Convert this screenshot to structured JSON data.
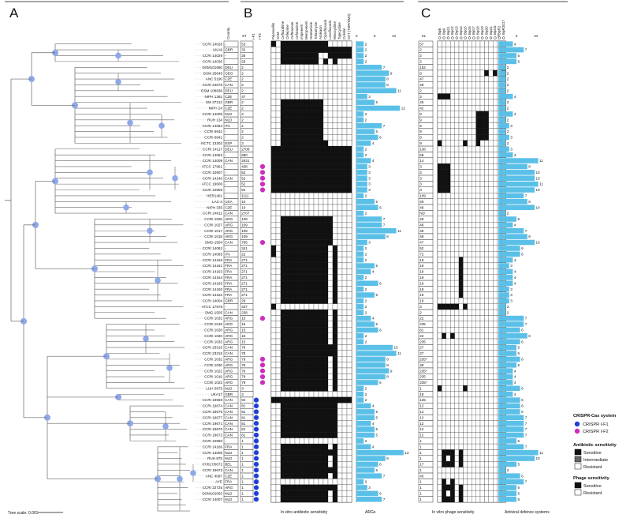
{
  "panels": {
    "a": "A",
    "b": "B",
    "c": "C"
  },
  "headers": {
    "st": "ST",
    "country": "Country",
    "if1": "I-F1",
    "if2": "I-F2",
    "kl": "KL"
  },
  "antibiotics": [
    "Piperacillin",
    "SAM",
    "Ceftazidime",
    "Cefepime",
    "Ceftriaxone",
    "Cefotaxime",
    "Imipenem",
    "Meropenem",
    "Gentamicin",
    "Tobramycin",
    "Amikacin",
    "Ciprofloxacin",
    "Levofloxacin",
    "Minocycline",
    "Tigecycline",
    "Colistin",
    "SXT (TMP/SMX)"
  ],
  "phages": [
    "Bφ8",
    "Bφ9",
    "Bφ11",
    "Bφ12",
    "Bφ13",
    "Bφ14",
    "Bφ15",
    "Bφ16",
    "Bφ17",
    "Bφ18",
    "Bφ19",
    "Bφ20",
    "Bφ21",
    "BφC5",
    "BφR2",
    "BφR2017"
  ],
  "args_axis": [
    "0",
    "5",
    "10"
  ],
  "defence_axis": [
    "0",
    "5",
    "10"
  ],
  "captions": {
    "antibiotic": "In vitro antibiotic sensitivity",
    "args": "ARGs",
    "phage": "In vitro phage sensitivity",
    "defence": "Antiviral defence systems"
  },
  "scale": "Tree scale: 0.001",
  "legend": {
    "crispr_title": "CRISPR-Cas system",
    "crispr_items": [
      {
        "label": "CRISPR I-F1",
        "color": "#1f3fd6"
      },
      {
        "label": "CRISPR I-F2",
        "color": "#cc2dbd"
      }
    ],
    "ab_title": "Antibiotic sensitivity",
    "ab_items": [
      {
        "label": "Sensitive",
        "color": "#111111"
      },
      {
        "label": "Intermediate",
        "color": "#666666"
      },
      {
        "label": "Resistant",
        "color": "#ffffff"
      }
    ],
    "ph_title": "Phage sensitivity",
    "ph_items": [
      {
        "label": "Sensitive",
        "color": "#111111"
      },
      {
        "label": "Resistant",
        "color": "#ffffff"
      }
    ]
  },
  "colors": {
    "bar": "#5bc0e8",
    "node": "#8fa8e8",
    "if1": "#1f3fd6",
    "if2": "#cc2dbd"
  },
  "strains": [
    {
      "name": "CCRI 14028",
      "country": "-",
      "st": "53",
      "if1": 0,
      "if2": 0,
      "ab": "20222222222200000",
      "args": 2,
      "ph": "0000000000000000",
      "kl": "57",
      "def": 4
    },
    {
      "name": "UKA9",
      "country": "GBR",
      "st": "32",
      "if1": 0,
      "if2": 0,
      "ab": "00222222222222222",
      "args": 2,
      "ph": "0000000000000000",
      "kl": "2",
      "def": 7
    },
    {
      "name": "CCRI 14029",
      "country": "-",
      "st": "28",
      "if1": 0,
      "if2": 0,
      "ab": "00222222220022222",
      "args": 2,
      "ph": "0000000000000000",
      "kl": "2",
      "def": 5
    },
    {
      "name": "CCRI 14030",
      "country": "-",
      "st": "26",
      "if1": 0,
      "if2": 0,
      "ab": "00222222220202000",
      "args": 2,
      "ph": "0000000000000000",
      "kl": "2",
      "def": 5
    },
    {
      "name": "DSM101650",
      "country": "DEU",
      "st": "2",
      "if1": 0,
      "if2": 0,
      "ab": "00000000000000000",
      "args": 7,
      "ph": "0000000000000000",
      "kl": "152",
      "def": 2
    },
    {
      "name": "DSM 25645",
      "country": "GEO",
      "st": "2",
      "if1": 0,
      "if2": 0,
      "ab": "00000000000000000",
      "args": 9,
      "ph": "0000000000010101",
      "kl": "9",
      "def": 2
    },
    {
      "name": "ANC 5190",
      "country": "CZE",
      "st": "2",
      "if1": 0,
      "if2": 0,
      "ab": "00000000000000000",
      "args": 8,
      "ph": "0000000000000000",
      "kl": "47",
      "def": 2
    },
    {
      "name": "CCRI 24076",
      "country": "CAN",
      "st": "2",
      "if1": 0,
      "if2": 0,
      "ab": "00000000000000000",
      "args": 8,
      "ph": "0000000000000000",
      "kl": "49",
      "def": 2
    },
    {
      "name": "DSM 108838",
      "country": "DEU",
      "st": "2",
      "if1": 0,
      "if2": 0,
      "ab": "00000000000000000",
      "args": 11,
      "ph": "0000000000000000",
      "kl": "2",
      "def": 2
    },
    {
      "name": "NIPH 1362",
      "country": "CZE",
      "st": "47",
      "if1": 0,
      "if2": 0,
      "ab": "00000000000000000",
      "args": 3,
      "ph": "1110000000000000",
      "kl": "3",
      "def": 4
    },
    {
      "name": "SM 37212",
      "country": "GBR",
      "st": "2",
      "if1": 0,
      "if2": 0,
      "ab": "00222222222000000",
      "args": 5,
      "ph": "0000000000000000",
      "kl": "45",
      "def": 2
    },
    {
      "name": "NIPH 24",
      "country": "CZE",
      "st": "2",
      "if1": 0,
      "if2": 0,
      "ab": "00222222222000000",
      "args": 12,
      "ph": "0000000000000000",
      "kl": "42",
      "def": 2
    },
    {
      "name": "CCRI 14005",
      "country": "NLD",
      "st": "2",
      "if1": 0,
      "if2": 0,
      "ab": "00222222222000000",
      "args": 2,
      "ph": "0000000001110000",
      "kl": "9",
      "def": 4
    },
    {
      "name": "RUH 134",
      "country": "NLD",
      "st": "2",
      "if1": 0,
      "if2": 0,
      "ab": "00222222222000000",
      "args": 2,
      "ph": "0000000001110000",
      "kl": "9",
      "def": 2
    },
    {
      "name": "CCRI 14064",
      "country": "ITA",
      "st": "2",
      "if1": 0,
      "if2": 0,
      "ab": "00222222222000000",
      "args": 7,
      "ph": "0000000001110000",
      "kl": "9",
      "def": 3
    },
    {
      "name": "CCRI 6642",
      "country": "-",
      "st": "2",
      "if1": 0,
      "if2": 0,
      "ab": "00222222222000000",
      "args": 5,
      "ph": "0000000001110000",
      "kl": "9",
      "def": 2
    },
    {
      "name": "CCRI 6841",
      "country": "-",
      "st": "2",
      "if1": 0,
      "if2": 0,
      "ab": "00222222222000000",
      "args": 6,
      "ph": "0000000001110000",
      "kl": "9",
      "def": 3
    },
    {
      "name": "NCTC 13302",
      "country": "ESP",
      "st": "3",
      "if1": 0,
      "if2": 0,
      "ab": "00222222222200000",
      "args": 4,
      "ph": "1000001001000000",
      "kl": "9",
      "def": 2
    },
    {
      "name": "CCRI 14117",
      "country": "DEU",
      "st": "2708",
      "if1": 0,
      "if2": 0,
      "ab": "22222222222222222",
      "args": 2,
      "ph": "0000000000000000",
      "kl": "138",
      "def": 3
    },
    {
      "name": "CCRI 14063",
      "country": "-",
      "st": "690",
      "if1": 0,
      "if2": 0,
      "ab": "22222222222222222",
      "args": 2,
      "ph": "0000000000000000",
      "kl": "58",
      "def": 4
    },
    {
      "name": "CCRI 14009",
      "country": "CAN",
      "st": "2631",
      "if1": 0,
      "if2": 0,
      "ab": "22222222222222222",
      "args": 4,
      "ph": "0000000000000000",
      "kl": "14",
      "def": 11
    },
    {
      "name": "ATCC 17961",
      "country": "-",
      "st": "438",
      "if1": 0,
      "if2": 1,
      "ab": "22222222222222222",
      "args": 3,
      "ph": "1110000000000000",
      "kl": "3",
      "def": 8
    },
    {
      "name": "CCRI 10907",
      "country": "-",
      "st": "52",
      "if1": 0,
      "if2": 1,
      "ab": "22222222222222222",
      "args": 3,
      "ph": "1110000000000000",
      "kl": "3",
      "def": 10
    },
    {
      "name": "CCRI 14140",
      "country": "CAN",
      "st": "52",
      "if1": 0,
      "if2": 1,
      "ab": "22222222222222222",
      "args": 3,
      "ph": "1110000000000000",
      "kl": "3",
      "def": 10
    },
    {
      "name": "ATCC 19606",
      "country": "-",
      "st": "52",
      "if1": 0,
      "if2": 1,
      "ab": "22222222222222222",
      "args": 3,
      "ph": "1110000000000000",
      "kl": "3",
      "def": 11
    },
    {
      "name": "CCRI 10906",
      "country": "-",
      "st": "52",
      "if1": 0,
      "if2": 1,
      "ab": "22222222222222222",
      "args": 3,
      "ph": "1110000000000000",
      "kl": "3",
      "def": 10
    },
    {
      "name": "HER1401",
      "country": "-",
      "st": "1111",
      "if1": 0,
      "if2": 0,
      "ab": "00000000000000000",
      "args": 2,
      "ph": "0000000000000000",
      "kl": "109",
      "def": 7
    },
    {
      "name": "LAC-4",
      "country": "USA",
      "st": "10",
      "if1": 0,
      "if2": 0,
      "ab": "00000000000000000",
      "args": 5,
      "ph": "0000000000000000",
      "kl": "49",
      "def": 8
    },
    {
      "name": "NIPH 335",
      "country": "CZE",
      "st": "10",
      "if1": 0,
      "if2": 0,
      "ab": "00000000000000000",
      "args": 6,
      "ph": "0000000000000000",
      "kl": "49",
      "def": 10
    },
    {
      "name": "CCRI 24611",
      "country": "CAN",
      "st": "2707",
      "if1": 0,
      "if2": 0,
      "ab": "00000000000000000",
      "args": 2,
      "ph": "0000000000000000",
      "kl": "ND",
      "def": 2
    },
    {
      "name": "CCRI 1026",
      "country": "ARG",
      "st": "109",
      "if1": 0,
      "if2": 0,
      "ab": "00222222222220000",
      "args": 7,
      "ph": "0000000000000000",
      "kl": "49",
      "def": 5
    },
    {
      "name": "CCRI 1027",
      "country": "ARG",
      "st": "109",
      "if1": 0,
      "if2": 0,
      "ab": "00222222222220000",
      "args": 7,
      "ph": "0000000000000000",
      "kl": "49",
      "def": 4
    },
    {
      "name": "CCRI 1017",
      "country": "ARG",
      "st": "109",
      "if1": 0,
      "if2": 0,
      "ab": "00222222222220000",
      "args": 11,
      "ph": "0000000000000000",
      "kl": "49",
      "def": 7
    },
    {
      "name": "CCRI 1018",
      "country": "ARG",
      "st": "109",
      "if1": 0,
      "if2": 0,
      "ab": "00222222222220000",
      "args": 8,
      "ph": "0000000000000000",
      "kl": "49",
      "def": 8
    },
    {
      "name": "SMG-1504",
      "country": "CAN",
      "st": "765",
      "if1": 0,
      "if2": 1,
      "ab": "00222222222220000",
      "args": 3,
      "ph": "0000000000000000",
      "kl": "47",
      "def": 10
    },
    {
      "name": "CCRI 14062",
      "country": "-",
      "st": "341",
      "if1": 0,
      "if2": 0,
      "ab": "20222222222202000",
      "args": 2,
      "ph": "0000000000000000",
      "kl": "52",
      "def": 6
    },
    {
      "name": "CCRI 14065",
      "country": "ITA",
      "st": "22",
      "if1": 0,
      "if2": 0,
      "ab": "20222222222202000",
      "args": 2,
      "ph": "0000000000000000",
      "kl": "72",
      "def": 6
    },
    {
      "name": "CCRI 14166",
      "country": "FRA",
      "st": "271",
      "if1": 0,
      "if2": 0,
      "ab": "00222222222202000",
      "args": 2,
      "ph": "0000010000000000",
      "kl": "19",
      "def": 4
    },
    {
      "name": "CCRI 14161",
      "country": "FRA",
      "st": "271",
      "if1": 0,
      "if2": 0,
      "ab": "00222222222202000",
      "args": 5,
      "ph": "0000010000000000",
      "kl": "19",
      "def": 3
    },
    {
      "name": "CCRI 14163",
      "country": "FRA",
      "st": "271",
      "if1": 0,
      "if2": 0,
      "ab": "00222222222202000",
      "args": 4,
      "ph": "0000010000000000",
      "kl": "19",
      "def": 4
    },
    {
      "name": "CCRI 14164",
      "country": "FRA",
      "st": "271",
      "if1": 0,
      "if2": 0,
      "ab": "00222222222202000",
      "args": 2,
      "ph": "0000010000000000",
      "kl": "19",
      "def": 4
    },
    {
      "name": "CCRI 14165",
      "country": "FRA",
      "st": "271",
      "if1": 0,
      "if2": 0,
      "ab": "00222222222202000",
      "args": 6,
      "ph": "0000010000000000",
      "kl": "19",
      "def": 4
    },
    {
      "name": "CCRI 14160",
      "country": "FRA",
      "st": "271",
      "if1": 0,
      "if2": 0,
      "ab": "00222222222202000",
      "args": 2,
      "ph": "0000010000000000",
      "kl": "19",
      "def": 3
    },
    {
      "name": "CCRI 14162",
      "country": "FRA",
      "st": "271",
      "if1": 0,
      "if2": 0,
      "ab": "00222222222202000",
      "args": 5,
      "ph": "0000010000000000",
      "kl": "19",
      "def": 3
    },
    {
      "name": "CCRI 14004",
      "country": "GBR",
      "st": "29",
      "if1": 0,
      "if2": 0,
      "ab": "00222222222202000",
      "args": 2,
      "ph": "0000000000000000",
      "kl": "19",
      "def": 3
    },
    {
      "name": "ATCC 17978",
      "country": "-",
      "st": "437",
      "if1": 0,
      "if2": 0,
      "ab": "20000000000000000",
      "args": 2,
      "ph": "1111101000000000",
      "kl": "3",
      "def": 2
    },
    {
      "name": "SMG-1505",
      "country": "CAN",
      "st": "238",
      "if1": 0,
      "if2": 0,
      "ab": "00222222222202000",
      "args": 2,
      "ph": "0000000000000000",
      "kl": "2",
      "def": 2
    },
    {
      "name": "CCRI 1031",
      "country": "ARG",
      "st": "15",
      "if1": 0,
      "if2": 1,
      "ab": "00222222222202000",
      "args": 4,
      "ph": "0000000000000000",
      "kl": "22",
      "def": 7
    },
    {
      "name": "CCRI 1019",
      "country": "ARG",
      "st": "15",
      "if1": 0,
      "if2": 0,
      "ab": "00222222222202000",
      "args": 5,
      "ph": "0000000000000000",
      "kl": "235",
      "def": 7
    },
    {
      "name": "CCRI 1028",
      "country": "ARG",
      "st": "15",
      "if1": 0,
      "if2": 0,
      "ab": "00222222222202000",
      "args": 6,
      "ph": "0000000000000000",
      "kl": "81",
      "def": 6
    },
    {
      "name": "CCRI 1020",
      "country": "ARG",
      "st": "15",
      "if1": 0,
      "if2": 0,
      "ab": "00222222222202000",
      "args": 2,
      "ph": "0101000000000000",
      "kl": "22",
      "def": 8
    },
    {
      "name": "CCRI 1033",
      "country": "ARG",
      "st": "15",
      "if1": 0,
      "if2": 0,
      "ab": "00222222222202000",
      "args": 2,
      "ph": "0000000000000000",
      "kl": "235",
      "def": 6
    },
    {
      "name": "CCRI 23315",
      "country": "CAN",
      "st": "78",
      "if1": 0,
      "if2": 0,
      "ab": "00222222222222000",
      "args": 10,
      "ph": "0000000000000000",
      "kl": "27",
      "def": 5
    },
    {
      "name": "CCRI 23316",
      "country": "CAN",
      "st": "78",
      "if1": 0,
      "if2": 0,
      "ab": "00222222222222000",
      "args": 11,
      "ph": "0000000000000000",
      "kl": "27",
      "def": 5
    },
    {
      "name": "CCRI 1032",
      "country": "ARG",
      "st": "79",
      "if1": 0,
      "if2": 1,
      "ab": "00222222222202000",
      "args": 8,
      "ph": "0000000000000000",
      "kl": "235*",
      "def": 6
    },
    {
      "name": "CCRI 1030",
      "country": "ARG",
      "st": "79",
      "if1": 0,
      "if2": 1,
      "ab": "00222222222202000",
      "args": 8,
      "ph": "0000000000000000",
      "kl": "49",
      "def": 5
    },
    {
      "name": "CCRI 1022",
      "country": "ARG",
      "st": "79",
      "if1": 0,
      "if2": 1,
      "ab": "00222222222202000",
      "args": 9,
      "ph": "0000000000000000",
      "kl": "235*",
      "def": 4
    },
    {
      "name": "CCRI 1016",
      "country": "ARG",
      "st": "79",
      "if1": 0,
      "if2": 1,
      "ab": "00222222222202000",
      "args": 8,
      "ph": "0000000000000000",
      "kl": "235",
      "def": 4
    },
    {
      "name": "CCRI 1023",
      "country": "ARG",
      "st": "79",
      "if1": 0,
      "if2": 1,
      "ab": "00222222222202000",
      "args": 6,
      "ph": "0000000000000000",
      "kl": "235*",
      "def": 4
    },
    {
      "name": "LUH 5875",
      "country": "NLD",
      "st": "3",
      "if1": 0,
      "if2": 0,
      "ab": "00222222222202000",
      "args": 2,
      "ph": "1000001000000000",
      "kl": "1",
      "def": 6
    },
    {
      "name": "UKA17",
      "country": "GBR",
      "st": "3",
      "if1": 0,
      "if2": 0,
      "ab": "00000000000000000",
      "args": 2,
      "ph": "0000000000000000",
      "kl": "18",
      "def": 4
    },
    {
      "name": "CCRI 19669",
      "country": "CAN",
      "st": "94",
      "if1": 1,
      "if2": 0,
      "ab": "22222222222222222",
      "args": 2,
      "ph": "0000000000000000",
      "kl": "125",
      "def": 6
    },
    {
      "name": "CCRI 19674",
      "country": "CAN",
      "st": "81",
      "if1": 1,
      "if2": 0,
      "ab": "00222222222222000",
      "args": 4,
      "ph": "0000000000000000",
      "kl": "12",
      "def": 6
    },
    {
      "name": "CCRI 19675",
      "country": "CAN",
      "st": "81",
      "if1": 1,
      "if2": 0,
      "ab": "00222222222222000",
      "args": 5,
      "ph": "0000000000000000",
      "kl": "12",
      "def": 6
    },
    {
      "name": "CCRI 19677",
      "country": "CAN",
      "st": "81",
      "if1": 1,
      "if2": 0,
      "ab": "00222222222222000",
      "args": 5,
      "ph": "0000000000000000",
      "kl": "12",
      "def": 7
    },
    {
      "name": "CCRI 19671",
      "country": "CAN",
      "st": "81",
      "if1": 1,
      "if2": 0,
      "ab": "00222222222222000",
      "args": 4,
      "ph": "0000000000000000",
      "kl": "12",
      "def": 7
    },
    {
      "name": "CCRI 19670",
      "country": "CAN",
      "st": "81",
      "if1": 1,
      "if2": 0,
      "ab": "00222222222222000",
      "args": 5,
      "ph": "0000000000000000",
      "kl": "12",
      "def": 7
    },
    {
      "name": "CCRI 19672",
      "country": "CAN",
      "st": "81",
      "if1": 1,
      "if2": 0,
      "ab": "00222222222222000",
      "args": 5,
      "ph": "0000000000000000",
      "kl": "12",
      "def": 7
    },
    {
      "name": "CCRI 10950",
      "country": "-",
      "st": "1",
      "if1": 1,
      "if2": 0,
      "ab": "00000000000000000",
      "args": 2,
      "ph": "0000000000000000",
      "kl": "1",
      "def": 5
    },
    {
      "name": "CCRI 14166",
      "country": "FRA",
      "st": "1",
      "if1": 1,
      "if2": 0,
      "ab": "00222222222202000",
      "args": 4,
      "ph": "0000000000000000",
      "kl": "1",
      "def": 7
    },
    {
      "name": "CCRI 14006",
      "country": "NLD",
      "st": "1",
      "if1": 1,
      "if2": 0,
      "ab": "00222222222222000",
      "args": 13,
      "ph": "0111010000000000",
      "kl": "1",
      "def": 11
    },
    {
      "name": "RUH 875",
      "country": "NLD",
      "st": "1",
      "if1": 1,
      "if2": 0,
      "ab": "00222222222202000",
      "args": 8,
      "ph": "0101010000000000",
      "kl": "1",
      "def": 10
    },
    {
      "name": "07/017/0072",
      "country": "BEL",
      "st": "1",
      "if1": 1,
      "if2": 0,
      "ab": "00222222222202000",
      "args": 6,
      "ph": "0111010000000000",
      "kl": "17",
      "def": 5
    },
    {
      "name": "CCRI 19673",
      "country": "CAN",
      "st": "1",
      "if1": 1,
      "if2": 0,
      "ab": "00222222222222000",
      "args": 5,
      "ph": "0000000000000000",
      "kl": "1",
      "def": 2
    },
    {
      "name": "ANC 4097",
      "country": "CZE",
      "st": "1",
      "if1": 1,
      "if2": 0,
      "ab": "00222222222202000",
      "args": 7,
      "ph": "0000000000000000",
      "kl": "40",
      "def": 6
    },
    {
      "name": "AYE",
      "country": "FRA",
      "st": "1",
      "if1": 1,
      "if2": 0,
      "ab": "00000000000000000",
      "args": 2,
      "ph": "0101000000000000",
      "kl": "1",
      "def": 7
    },
    {
      "name": "CCRI 22725",
      "country": "ARG",
      "st": "1",
      "if1": 1,
      "if2": 0,
      "ab": "00222222222222000",
      "args": 3,
      "ph": "0111010000000000",
      "kl": "1",
      "def": 5
    },
    {
      "name": "DSM101063",
      "country": "NLD",
      "st": "1",
      "if1": 1,
      "if2": 0,
      "ab": "00222222222202000",
      "args": 6,
      "ph": "0101010000000000",
      "kl": "1",
      "def": 5
    },
    {
      "name": "CCRI 14007",
      "country": "NLD",
      "st": "1",
      "if1": 1,
      "if2": 0,
      "ab": "00222222222202000",
      "args": 7,
      "ph": "0111010000000000",
      "kl": "1",
      "def": 5
    }
  ]
}
